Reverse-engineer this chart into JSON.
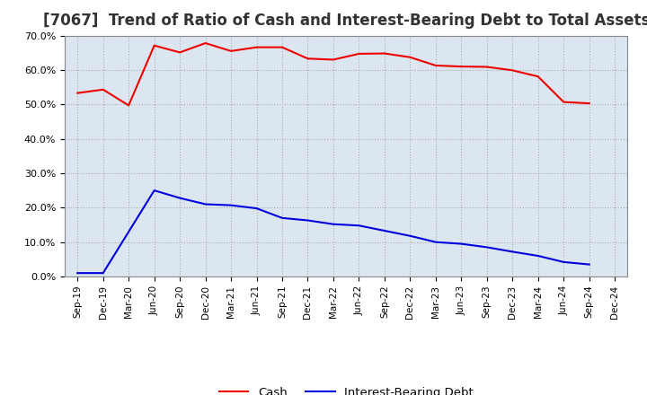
{
  "title": "[7067]  Trend of Ratio of Cash and Interest-Bearing Debt to Total Assets",
  "x_labels": [
    "Sep-19",
    "Dec-19",
    "Mar-20",
    "Jun-20",
    "Sep-20",
    "Dec-20",
    "Mar-21",
    "Jun-21",
    "Sep-21",
    "Dec-21",
    "Mar-22",
    "Jun-22",
    "Sep-22",
    "Dec-22",
    "Mar-23",
    "Jun-23",
    "Sep-23",
    "Dec-23",
    "Mar-24",
    "Jun-24",
    "Sep-24",
    "Dec-24"
  ],
  "cash": [
    0.533,
    0.543,
    0.497,
    0.671,
    0.651,
    0.678,
    0.655,
    0.666,
    0.666,
    0.633,
    0.63,
    0.647,
    0.648,
    0.637,
    0.613,
    0.61,
    0.609,
    0.599,
    0.581,
    0.507,
    0.503,
    null
  ],
  "ibd": [
    0.01,
    0.01,
    null,
    0.25,
    0.228,
    0.21,
    0.207,
    0.198,
    0.17,
    0.163,
    0.152,
    0.148,
    0.133,
    0.118,
    0.1,
    0.095,
    0.085,
    0.072,
    0.06,
    0.042,
    0.035,
    null
  ],
  "cash_color": "#ee0000",
  "ibd_color": "#0000dd",
  "background_color": "#ffffff",
  "plot_bg_color": "#dce6f1",
  "grid_color": "#aaaaaa",
  "ylim": [
    0.0,
    0.7
  ],
  "yticks": [
    0.0,
    0.1,
    0.2,
    0.3,
    0.4,
    0.5,
    0.6,
    0.7
  ],
  "legend_cash": "Cash",
  "legend_ibd": "Interest-Bearing Debt",
  "title_fontsize": 12
}
